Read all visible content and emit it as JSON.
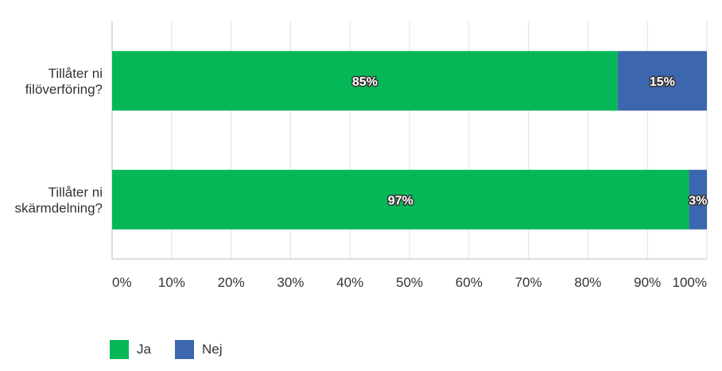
{
  "chart_data": {
    "type": "bar",
    "orientation": "horizontal",
    "stacked": true,
    "categories": [
      [
        "Tillåter ni",
        "filöverföring?"
      ],
      [
        "Tillåter ni",
        "skärmdelning?"
      ]
    ],
    "series": [
      {
        "name": "Ja",
        "color": "#05b757",
        "values": [
          85,
          97
        ],
        "labels": [
          "85%",
          "97%"
        ]
      },
      {
        "name": "Nej",
        "color": "#3c66ad",
        "values": [
          15,
          3
        ],
        "labels": [
          "15%",
          "3%"
        ]
      }
    ],
    "x_ticks": [
      "0%",
      "10%",
      "20%",
      "30%",
      "40%",
      "50%",
      "60%",
      "70%",
      "80%",
      "90%",
      "100%"
    ],
    "xlim": [
      0,
      100
    ],
    "grid": true,
    "legend_position": "bottom-left"
  }
}
